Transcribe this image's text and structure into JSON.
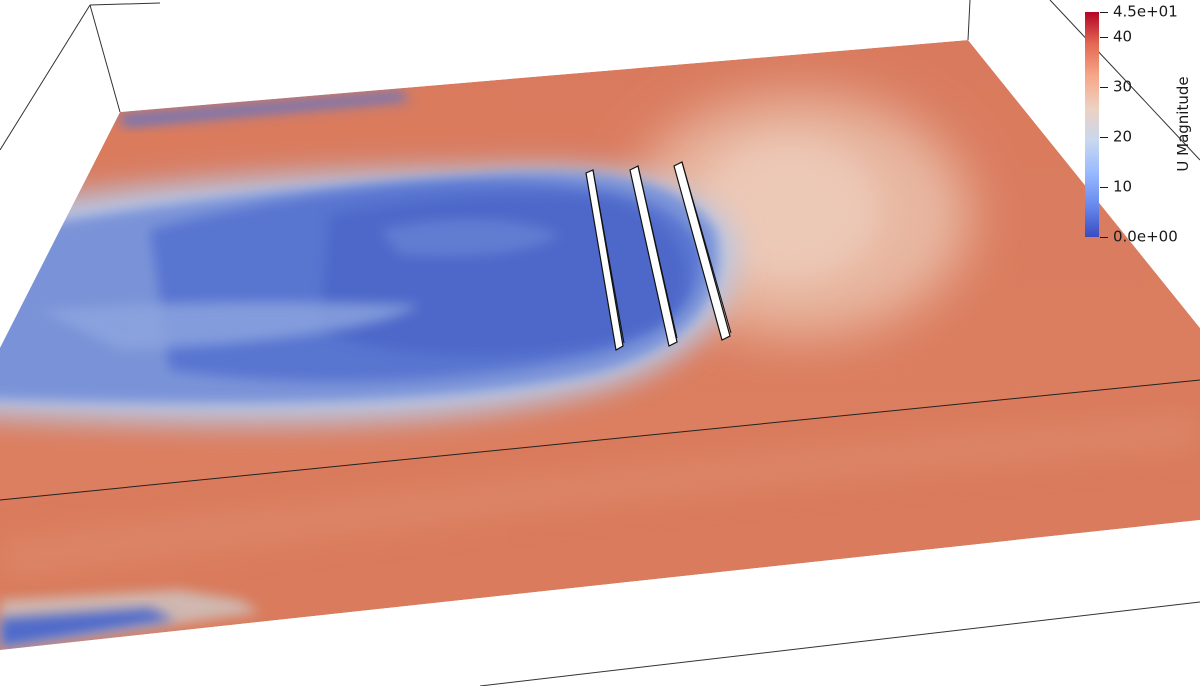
{
  "scalar_bar": {
    "title": "U Magnitude",
    "range": [
      0,
      45
    ],
    "ticks": [
      {
        "label": "4.5e+01",
        "value": 45
      },
      {
        "label": "40",
        "value": 40
      },
      {
        "label": "30",
        "value": 30
      },
      {
        "label": "20",
        "value": 20
      },
      {
        "label": "10",
        "value": 10
      },
      {
        "label": "0.0e+00",
        "value": 0
      }
    ],
    "colormap": [
      "#3b4cc0",
      "#688aef",
      "#99baff",
      "#c9d8ef",
      "#edd1c2",
      "#f7a789",
      "#e36a53",
      "#b40426"
    ]
  },
  "colors": {
    "high_velocity": "#d8785b",
    "low_velocity": "#4a66c7",
    "mid_velocity": "#dcdcdc",
    "panel_fill": "#ffffff",
    "panel_edge": "#111111"
  },
  "scene": {
    "objects": "three parallel flat panels standing in the flow, with a low-velocity wake region downstream"
  }
}
